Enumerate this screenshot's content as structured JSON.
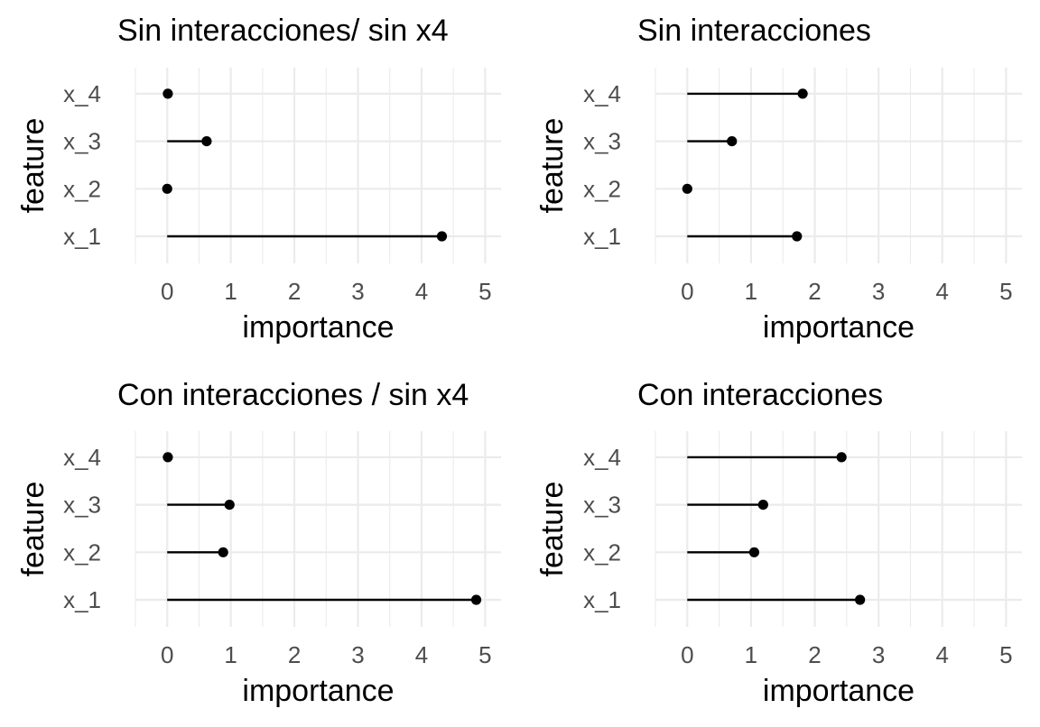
{
  "chart_data": [
    {
      "type": "lollipop",
      "title": "Sin interacciones/ sin x4",
      "xlabel": "importance",
      "ylabel": "feature",
      "categories": [
        "x_1",
        "x_2",
        "x_3",
        "x_4"
      ],
      "values": [
        4.32,
        0.0,
        0.62,
        0.01
      ],
      "xlim": [
        -0.5,
        5.25
      ],
      "xticks": [
        "0",
        "1",
        "2",
        "3",
        "4",
        "5"
      ],
      "grid": true
    },
    {
      "type": "lollipop",
      "title": "Sin interacciones",
      "xlabel": "importance",
      "ylabel": "feature",
      "categories": [
        "x_1",
        "x_2",
        "x_3",
        "x_4"
      ],
      "values": [
        1.72,
        0.0,
        0.7,
        1.81
      ],
      "xlim": [
        -0.5,
        5.25
      ],
      "xticks": [
        "0",
        "1",
        "2",
        "3",
        "4",
        "5"
      ],
      "grid": true
    },
    {
      "type": "lollipop",
      "title": "Con interacciones / sin x4",
      "xlabel": "importance",
      "ylabel": "feature",
      "categories": [
        "x_1",
        "x_2",
        "x_3",
        "x_4"
      ],
      "values": [
        4.86,
        0.88,
        0.98,
        0.01
      ],
      "xlim": [
        -0.5,
        5.25
      ],
      "xticks": [
        "0",
        "1",
        "2",
        "3",
        "4",
        "5"
      ],
      "grid": true
    },
    {
      "type": "lollipop",
      "title": "Con interacciones",
      "xlabel": "importance",
      "ylabel": "feature",
      "categories": [
        "x_1",
        "x_2",
        "x_3",
        "x_4"
      ],
      "values": [
        2.71,
        1.05,
        1.19,
        2.42
      ],
      "xlim": [
        -0.5,
        5.25
      ],
      "xticks": [
        "0",
        "1",
        "2",
        "3",
        "4",
        "5"
      ],
      "grid": true
    }
  ]
}
